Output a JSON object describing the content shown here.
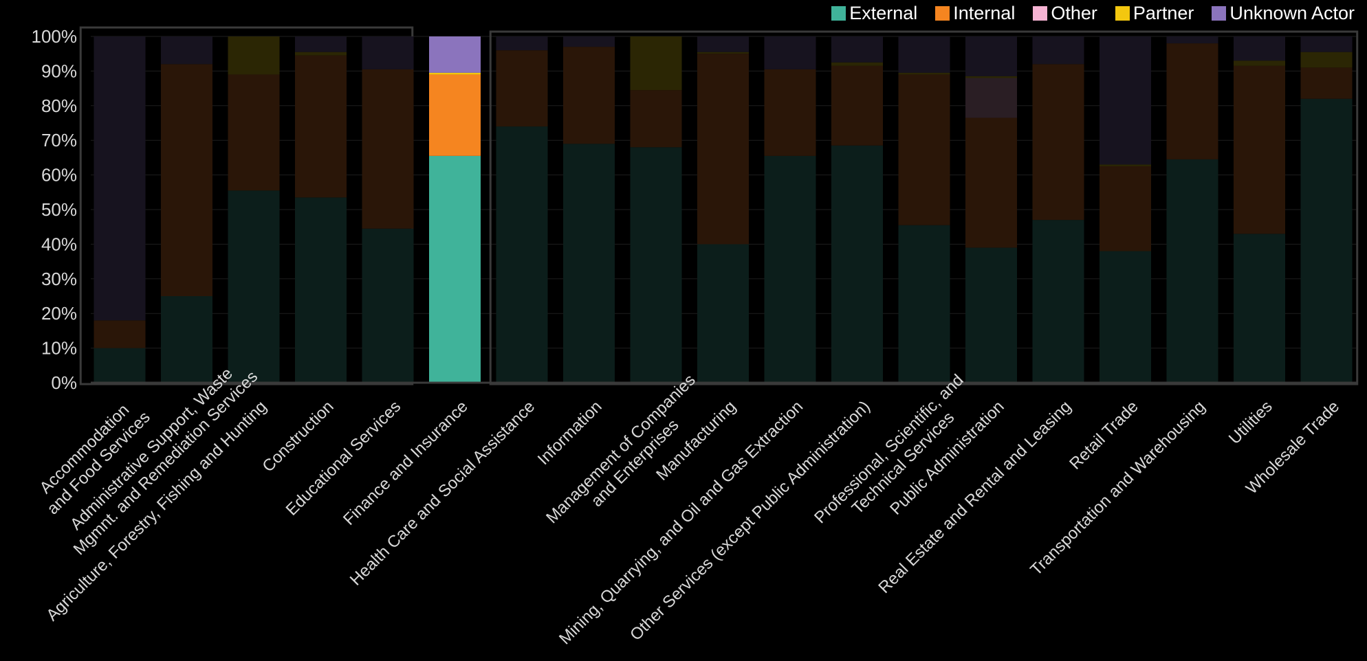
{
  "chart_data": {
    "type": "bar",
    "stacked": true,
    "percent": true,
    "ylim": [
      0,
      100
    ],
    "yticks": [
      "0%",
      "10%",
      "20%",
      "30%",
      "40%",
      "50%",
      "60%",
      "70%",
      "80%",
      "90%",
      "100%"
    ],
    "grid": true,
    "legend_position": "top-right",
    "highlighted_category": "Finance and Insurance",
    "categories": [
      [
        "Accommodation",
        "and Food Services"
      ],
      [
        "Administrative Support, Waste",
        "Mgmnt. and Remediation Services"
      ],
      [
        "Agriculture, Forestry, Fishing and Hunting"
      ],
      [
        "Construction"
      ],
      [
        "Educational Services"
      ],
      [
        "Finance and Insurance"
      ],
      [
        "Health Care and Social Assistance"
      ],
      [
        "Information"
      ],
      [
        "Management of Companies",
        "and Enterprises"
      ],
      [
        "Manufacturing"
      ],
      [
        "Mining, Quarrying, and Oil and Gas Extraction"
      ],
      [
        "Other Services (except Public Administration)"
      ],
      [
        "Professional, Scientific, and",
        "Technical Services"
      ],
      [
        "Public Administration"
      ],
      [
        "Real Estate and Rental and Leasing"
      ],
      [
        "Retail Trade"
      ],
      [
        "Transportation and Warehousing"
      ],
      [
        "Utilities"
      ],
      [
        "Wholesale Trade"
      ]
    ],
    "series": [
      {
        "name": "External",
        "color": "#40b39a",
        "dim_color": "#0c1e1b",
        "values": [
          10,
          25,
          55.5,
          53.5,
          44.5,
          65.5,
          74,
          69,
          68,
          40,
          65.5,
          68.5,
          45.5,
          39,
          47,
          38,
          64.5,
          43,
          82
        ]
      },
      {
        "name": "Internal",
        "color": "#f58520",
        "dim_color": "#2a1608",
        "values": [
          8,
          67,
          33.5,
          41,
          46,
          23.5,
          22,
          28,
          16.5,
          55,
          25,
          23,
          43.5,
          37.5,
          45,
          24.5,
          33.5,
          48.5,
          9
        ]
      },
      {
        "name": "Other",
        "color": "#f6b3d3",
        "dim_color": "#2a1e24",
        "values": [
          0,
          0,
          0,
          0,
          0,
          0,
          0,
          0,
          0,
          0,
          0,
          0,
          0,
          11.5,
          0,
          0,
          0,
          0,
          0
        ]
      },
      {
        "name": "Partner",
        "color": "#f3c70f",
        "dim_color": "#2b2604",
        "values": [
          0,
          0,
          11,
          1,
          0,
          0.5,
          0,
          0,
          15.5,
          0.5,
          0,
          1,
          0.5,
          0.5,
          0,
          0.5,
          0,
          1.5,
          4.5
        ]
      },
      {
        "name": "Unknown Actor",
        "color": "#8b74bd",
        "dim_color": "#17131f",
        "values": [
          82,
          8,
          0,
          4.5,
          9.5,
          10.5,
          4,
          3,
          0,
          4.5,
          9.5,
          7.5,
          10.5,
          11.5,
          8,
          37,
          2,
          7,
          4.5
        ]
      }
    ]
  }
}
